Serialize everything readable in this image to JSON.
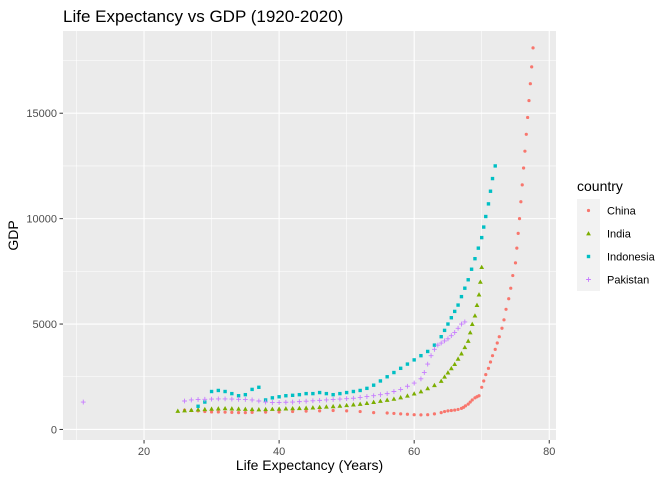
{
  "chart_data": {
    "type": "scatter",
    "title": "Life Expectancy vs GDP (1920-2020)",
    "xlabel": "Life Expectancy (Years)",
    "ylabel": "GDP",
    "xlim": [
      8,
      81
    ],
    "ylim": [
      -500,
      18900
    ],
    "x_ticks": [
      20,
      40,
      60,
      80
    ],
    "y_ticks": [
      0,
      5000,
      10000,
      15000
    ],
    "y_tick_labels": [
      "0",
      "5000",
      "10000",
      "15000"
    ],
    "grid": true,
    "legend": {
      "title": "country",
      "position": "right"
    },
    "series": [
      {
        "name": "China",
        "color": "#F8766D",
        "marker": "circle",
        "points": [
          [
            26,
            920
          ],
          [
            27,
            900
          ],
          [
            28,
            880
          ],
          [
            29,
            850
          ],
          [
            30,
            830
          ],
          [
            31,
            830
          ],
          [
            32,
            820
          ],
          [
            33,
            810
          ],
          [
            34,
            800
          ],
          [
            35,
            800
          ],
          [
            36,
            810
          ],
          [
            38,
            820
          ],
          [
            40,
            830
          ],
          [
            42,
            850
          ],
          [
            44,
            870
          ],
          [
            46,
            880
          ],
          [
            48,
            900
          ],
          [
            50,
            880
          ],
          [
            52,
            850
          ],
          [
            54,
            800
          ],
          [
            56,
            780
          ],
          [
            57,
            760
          ],
          [
            58,
            740
          ],
          [
            59,
            720
          ],
          [
            60,
            700
          ],
          [
            61,
            690
          ],
          [
            62,
            700
          ],
          [
            63,
            740
          ],
          [
            64,
            800
          ],
          [
            64.5,
            850
          ],
          [
            65,
            880
          ],
          [
            65.5,
            900
          ],
          [
            66,
            920
          ],
          [
            66.5,
            950
          ],
          [
            67,
            1000
          ],
          [
            67.3,
            1050
          ],
          [
            67.6,
            1120
          ],
          [
            68,
            1200
          ],
          [
            68.3,
            1300
          ],
          [
            68.6,
            1400
          ],
          [
            69,
            1500
          ],
          [
            69.3,
            1550
          ],
          [
            69.6,
            1600
          ],
          [
            70,
            2000
          ],
          [
            70.3,
            2300
          ],
          [
            70.6,
            2600
          ],
          [
            71,
            2900
          ],
          [
            71.3,
            3200
          ],
          [
            71.6,
            3500
          ],
          [
            72,
            3800
          ],
          [
            72.3,
            4100
          ],
          [
            72.6,
            4400
          ],
          [
            73,
            4800
          ],
          [
            73.3,
            5200
          ],
          [
            73.6,
            5700
          ],
          [
            74,
            6200
          ],
          [
            74.3,
            6700
          ],
          [
            74.6,
            7300
          ],
          [
            75,
            7900
          ],
          [
            75.2,
            8600
          ],
          [
            75.4,
            9300
          ],
          [
            75.6,
            10000
          ],
          [
            75.8,
            10800
          ],
          [
            76,
            11600
          ],
          [
            76.2,
            12400
          ],
          [
            76.4,
            13200
          ],
          [
            76.6,
            14000
          ],
          [
            76.8,
            14800
          ],
          [
            77,
            15600
          ],
          [
            77.2,
            16400
          ],
          [
            77.4,
            17200
          ],
          [
            77.6,
            18100
          ]
        ]
      },
      {
        "name": "India",
        "color": "#7CAE00",
        "marker": "triangle",
        "points": [
          [
            25,
            880
          ],
          [
            26,
            900
          ],
          [
            27,
            920
          ],
          [
            28,
            940
          ],
          [
            29,
            960
          ],
          [
            30,
            980
          ],
          [
            31,
            990
          ],
          [
            32,
            1000
          ],
          [
            33,
            990
          ],
          [
            34,
            980
          ],
          [
            35,
            970
          ],
          [
            36,
            960
          ],
          [
            37,
            950
          ],
          [
            38,
            960
          ],
          [
            39,
            970
          ],
          [
            40,
            980
          ],
          [
            41,
            990
          ],
          [
            42,
            1000
          ],
          [
            43,
            1010
          ],
          [
            44,
            1020
          ],
          [
            45,
            1040
          ],
          [
            46,
            1060
          ],
          [
            47,
            1080
          ],
          [
            48,
            1100
          ],
          [
            49,
            1120
          ],
          [
            50,
            1150
          ],
          [
            51,
            1180
          ],
          [
            52,
            1210
          ],
          [
            53,
            1250
          ],
          [
            54,
            1300
          ],
          [
            55,
            1350
          ],
          [
            56,
            1400
          ],
          [
            57,
            1450
          ],
          [
            58,
            1520
          ],
          [
            59,
            1600
          ],
          [
            60,
            1700
          ],
          [
            61,
            1800
          ],
          [
            62,
            1950
          ],
          [
            63,
            2100
          ],
          [
            64,
            2300
          ],
          [
            64.5,
            2500
          ],
          [
            65,
            2700
          ],
          [
            65.5,
            2900
          ],
          [
            66,
            3100
          ],
          [
            66.5,
            3350
          ],
          [
            67,
            3600
          ],
          [
            67.5,
            3900
          ],
          [
            68,
            4200
          ],
          [
            68.3,
            4600
          ],
          [
            68.6,
            5000
          ],
          [
            69,
            5400
          ],
          [
            69.3,
            5900
          ],
          [
            69.6,
            6400
          ],
          [
            69.8,
            7000
          ],
          [
            70,
            7700
          ]
        ]
      },
      {
        "name": "Indonesia",
        "color": "#00BFC4",
        "marker": "square",
        "points": [
          [
            28,
            1100
          ],
          [
            29,
            1300
          ],
          [
            30,
            1800
          ],
          [
            31,
            1850
          ],
          [
            32,
            1800
          ],
          [
            33,
            1700
          ],
          [
            34,
            1600
          ],
          [
            35,
            1650
          ],
          [
            36,
            1900
          ],
          [
            37,
            2000
          ],
          [
            38,
            1400
          ],
          [
            39,
            1500
          ],
          [
            40,
            1550
          ],
          [
            41,
            1600
          ],
          [
            42,
            1620
          ],
          [
            43,
            1650
          ],
          [
            44,
            1700
          ],
          [
            45,
            1700
          ],
          [
            46,
            1750
          ],
          [
            47,
            1700
          ],
          [
            48,
            1650
          ],
          [
            49,
            1700
          ],
          [
            50,
            1750
          ],
          [
            51,
            1800
          ],
          [
            52,
            1850
          ],
          [
            53,
            1950
          ],
          [
            54,
            2100
          ],
          [
            55,
            2300
          ],
          [
            56,
            2500
          ],
          [
            57,
            2700
          ],
          [
            58,
            2900
          ],
          [
            59,
            3100
          ],
          [
            60,
            3300
          ],
          [
            61,
            3500
          ],
          [
            62,
            3700
          ],
          [
            63,
            4000
          ],
          [
            64,
            4400
          ],
          [
            64.5,
            4700
          ],
          [
            65,
            5000
          ],
          [
            65.5,
            5300
          ],
          [
            66,
            5600
          ],
          [
            66.5,
            5900
          ],
          [
            67,
            6300
          ],
          [
            67.5,
            6700
          ],
          [
            68,
            7100
          ],
          [
            68.5,
            7600
          ],
          [
            69,
            8100
          ],
          [
            69.5,
            8600
          ],
          [
            70,
            9100
          ],
          [
            70.3,
            9600
          ],
          [
            70.6,
            10100
          ],
          [
            71,
            10700
          ],
          [
            71.3,
            11300
          ],
          [
            71.6,
            11900
          ],
          [
            72,
            12500
          ]
        ]
      },
      {
        "name": "Pakistan",
        "color": "#C77CFF",
        "marker": "plus",
        "points": [
          [
            11,
            1300
          ],
          [
            26,
            1350
          ],
          [
            27,
            1400
          ],
          [
            28,
            1420
          ],
          [
            29,
            1430
          ],
          [
            30,
            1440
          ],
          [
            31,
            1450
          ],
          [
            32,
            1450
          ],
          [
            33,
            1440
          ],
          [
            34,
            1430
          ],
          [
            35,
            1420
          ],
          [
            36,
            1400
          ],
          [
            37,
            1350
          ],
          [
            38,
            1300
          ],
          [
            39,
            1280
          ],
          [
            40,
            1280
          ],
          [
            41,
            1290
          ],
          [
            42,
            1300
          ],
          [
            43,
            1320
          ],
          [
            44,
            1340
          ],
          [
            45,
            1360
          ],
          [
            46,
            1380
          ],
          [
            47,
            1400
          ],
          [
            48,
            1420
          ],
          [
            49,
            1440
          ],
          [
            50,
            1460
          ],
          [
            51,
            1480
          ],
          [
            52,
            1520
          ],
          [
            53,
            1560
          ],
          [
            54,
            1600
          ],
          [
            55,
            1650
          ],
          [
            56,
            1700
          ],
          [
            57,
            1800
          ],
          [
            58,
            1900
          ],
          [
            59,
            2050
          ],
          [
            60,
            2200
          ],
          [
            61,
            2400
          ],
          [
            61.5,
            2700
          ],
          [
            62,
            3100
          ],
          [
            62.5,
            3500
          ],
          [
            63,
            3800
          ],
          [
            63.5,
            4000
          ],
          [
            64,
            4100
          ],
          [
            64.5,
            4200
          ],
          [
            65,
            4300
          ],
          [
            65.5,
            4450
          ],
          [
            66,
            4600
          ],
          [
            66.5,
            4800
          ],
          [
            67,
            5000
          ],
          [
            67.5,
            5100
          ]
        ]
      }
    ]
  }
}
